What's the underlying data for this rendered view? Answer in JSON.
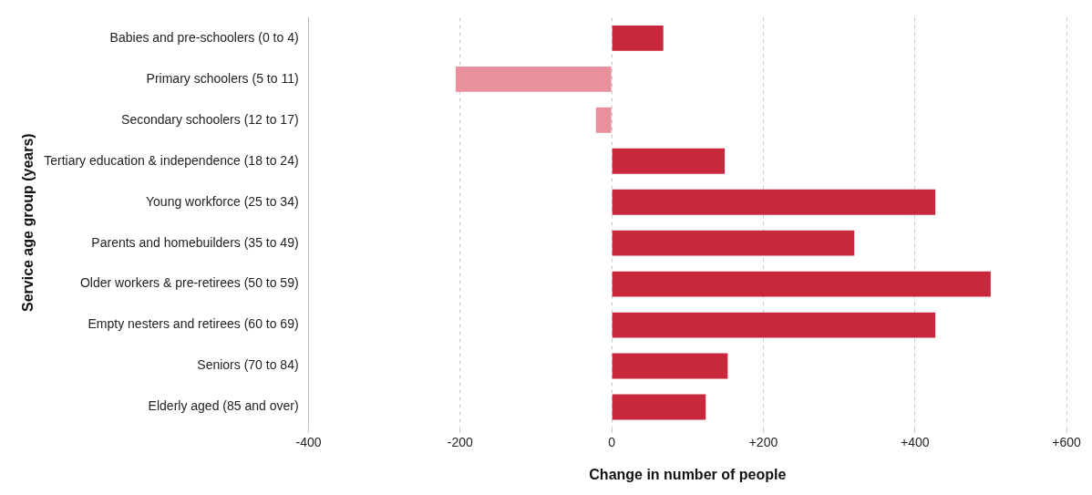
{
  "chart_data": {
    "type": "bar",
    "orientation": "horizontal",
    "categories": [
      "Babies and pre-schoolers (0 to 4)",
      "Primary schoolers (5 to 11)",
      "Secondary schoolers (12 to 17)",
      "Tertiary education & independence (18 to 24)",
      "Young workforce (25 to 34)",
      "Parents and homebuilders (35 to 49)",
      "Older workers & pre-retirees (50 to 59)",
      "Empty nesters and retirees (60 to 69)",
      "Seniors (70 to 84)",
      "Elderly aged (85 and over)"
    ],
    "values": [
      68,
      -206,
      -21,
      149,
      427,
      320,
      500,
      427,
      153,
      124
    ],
    "colors": [
      "#c8283c",
      "#e8909c",
      "#e8909c",
      "#c8283c",
      "#c8283c",
      "#c8283c",
      "#c8283c",
      "#c8283c",
      "#c8283c",
      "#c8283c"
    ],
    "xlim": [
      -400,
      600
    ],
    "xticks": [
      {
        "value": -400,
        "label": "-400"
      },
      {
        "value": -200,
        "label": "-200"
      },
      0,
      {
        "value": 200,
        "label": "+200"
      },
      {
        "value": 400,
        "label": "+400"
      },
      {
        "value": 600,
        "label": "+600"
      }
    ],
    "xlabel": "Change in number of people",
    "ylabel": "Service age group (years)",
    "grid": "x",
    "legend": false
  }
}
